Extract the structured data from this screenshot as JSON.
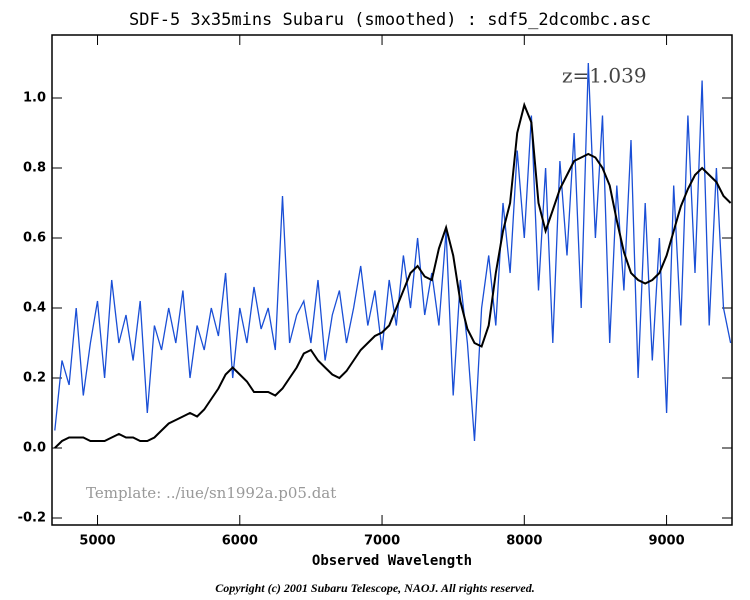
{
  "chart_data": {
    "type": "line",
    "title": "SDF-5 3x35mins Subaru (smoothed) : sdf5_2dcombc.asc",
    "x_label": "Observed Wavelength",
    "annotations": [
      "z=1.039",
      "Template: ../iue/sn1992a.p05.dat"
    ],
    "footer": "Copyright (c) 2001 Subaru Telescope, NAOJ. All rights reserved.",
    "xlim": [
      4680,
      9460
    ],
    "ylim": [
      -0.22,
      1.18
    ],
    "xticks": [
      5000,
      6000,
      7000,
      8000,
      9000
    ],
    "yticks": [
      -0.2,
      {
        "value": 0,
        "label": "0.0"
      },
      0.2,
      0.4,
      0.6,
      0.8,
      {
        "value": 1,
        "label": "1.0"
      }
    ],
    "x": [
      4700,
      4750,
      4800,
      4850,
      4900,
      4950,
      5000,
      5050,
      5100,
      5150,
      5200,
      5250,
      5300,
      5350,
      5400,
      5450,
      5500,
      5550,
      5600,
      5650,
      5700,
      5750,
      5800,
      5850,
      5900,
      5950,
      6000,
      6050,
      6100,
      6150,
      6200,
      6250,
      6300,
      6350,
      6400,
      6450,
      6500,
      6550,
      6600,
      6650,
      6700,
      6750,
      6800,
      6850,
      6900,
      6950,
      7000,
      7050,
      7100,
      7150,
      7200,
      7250,
      7300,
      7350,
      7400,
      7450,
      7500,
      7550,
      7600,
      7650,
      7700,
      7750,
      7800,
      7850,
      7900,
      7950,
      8000,
      8050,
      8100,
      8150,
      8200,
      8250,
      8300,
      8350,
      8400,
      8450,
      8500,
      8550,
      8600,
      8650,
      8700,
      8750,
      8800,
      8850,
      8900,
      8950,
      9000,
      9050,
      9100,
      9150,
      9200,
      9250,
      9300,
      9350,
      9400,
      9450
    ],
    "series": [
      {
        "color": "#1a4fd6",
        "width": 1.3,
        "values": [
          0.05,
          0.25,
          0.18,
          0.4,
          0.15,
          0.3,
          0.42,
          0.2,
          0.48,
          0.3,
          0.38,
          0.25,
          0.42,
          0.1,
          0.35,
          0.28,
          0.4,
          0.3,
          0.45,
          0.2,
          0.35,
          0.28,
          0.4,
          0.32,
          0.5,
          0.2,
          0.4,
          0.3,
          0.46,
          0.34,
          0.4,
          0.28,
          0.72,
          0.3,
          0.38,
          0.42,
          0.3,
          0.48,
          0.25,
          0.38,
          0.45,
          0.3,
          0.4,
          0.52,
          0.35,
          0.45,
          0.28,
          0.48,
          0.35,
          0.55,
          0.4,
          0.6,
          0.38,
          0.5,
          0.35,
          0.62,
          0.15,
          0.48,
          0.3,
          0.02,
          0.4,
          0.55,
          0.35,
          0.7,
          0.5,
          0.85,
          0.6,
          0.95,
          0.45,
          0.8,
          0.3,
          0.82,
          0.55,
          0.9,
          0.4,
          1.1,
          0.6,
          0.95,
          0.3,
          0.75,
          0.45,
          0.88,
          0.2,
          0.7,
          0.25,
          0.6,
          0.1,
          0.75,
          0.35,
          0.95,
          0.5,
          1.05,
          0.35,
          0.8,
          0.4,
          0.3
        ]
      },
      {
        "color": "#000000",
        "width": 2,
        "values": [
          0.0,
          0.02,
          0.03,
          0.03,
          0.03,
          0.02,
          0.02,
          0.02,
          0.03,
          0.04,
          0.03,
          0.03,
          0.02,
          0.02,
          0.03,
          0.05,
          0.07,
          0.08,
          0.09,
          0.1,
          0.09,
          0.11,
          0.14,
          0.17,
          0.21,
          0.23,
          0.21,
          0.19,
          0.16,
          0.16,
          0.16,
          0.15,
          0.17,
          0.2,
          0.23,
          0.27,
          0.28,
          0.25,
          0.23,
          0.21,
          0.2,
          0.22,
          0.25,
          0.28,
          0.3,
          0.32,
          0.33,
          0.35,
          0.4,
          0.45,
          0.5,
          0.52,
          0.49,
          0.48,
          0.57,
          0.63,
          0.55,
          0.42,
          0.34,
          0.3,
          0.29,
          0.35,
          0.5,
          0.62,
          0.7,
          0.9,
          0.98,
          0.93,
          0.7,
          0.62,
          0.68,
          0.74,
          0.78,
          0.82,
          0.83,
          0.84,
          0.83,
          0.8,
          0.75,
          0.65,
          0.56,
          0.5,
          0.48,
          0.47,
          0.48,
          0.5,
          0.55,
          0.62,
          0.69,
          0.74,
          0.78,
          0.8,
          0.78,
          0.76,
          0.72,
          0.7
        ]
      }
    ]
  }
}
